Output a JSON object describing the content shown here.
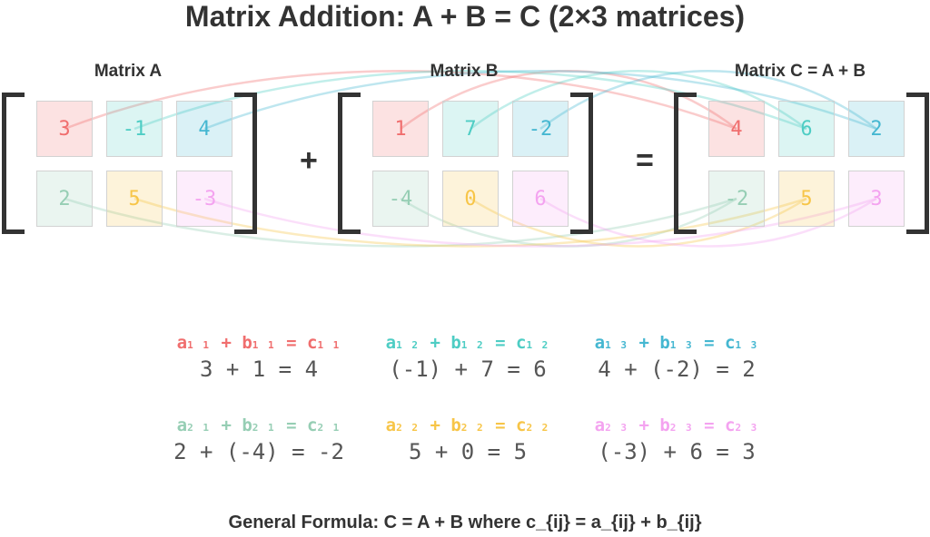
{
  "title": "Matrix Addition: A + B = C (2×3 matrices)",
  "matrices": [
    {
      "label": "Matrix A",
      "cells": [
        [
          "3",
          "-1",
          "4"
        ],
        [
          "2",
          "5",
          "-3"
        ]
      ]
    },
    {
      "label": "Matrix B",
      "cells": [
        [
          "1",
          "7",
          "-2"
        ],
        [
          "-4",
          "0",
          "6"
        ]
      ]
    },
    {
      "label": "Matrix C = A + B",
      "cells": [
        [
          "4",
          "6",
          "2"
        ],
        [
          "-2",
          "5",
          "3"
        ]
      ]
    }
  ],
  "operators": {
    "plus": "+",
    "equals": "="
  },
  "colors": [
    "#f06e6e",
    "#4ecdc4",
    "#45b7d1",
    "#96ceb4",
    "#f7c548",
    "#f4a3f0"
  ],
  "equations": [
    {
      "a": "a",
      "b": "b",
      "c": "c",
      "idx": "11",
      "work": "3 + 1 = 4"
    },
    {
      "a": "a",
      "b": "b",
      "c": "c",
      "idx": "12",
      "work": "(-1) + 7 = 6"
    },
    {
      "a": "a",
      "b": "b",
      "c": "c",
      "idx": "13",
      "work": "4 + (-2) = 2"
    },
    {
      "a": "a",
      "b": "b",
      "c": "c",
      "idx": "21",
      "work": "2 + (-4) = -2"
    },
    {
      "a": "a",
      "b": "b",
      "c": "c",
      "idx": "22",
      "work": "5 + 0 = 5"
    },
    {
      "a": "a",
      "b": "b",
      "c": "c",
      "idx": "23",
      "work": "(-3) + 6 = 3"
    }
  ],
  "formula": "General Formula: C = A + B where c_{ij} = a_{ij} + b_{ij}"
}
